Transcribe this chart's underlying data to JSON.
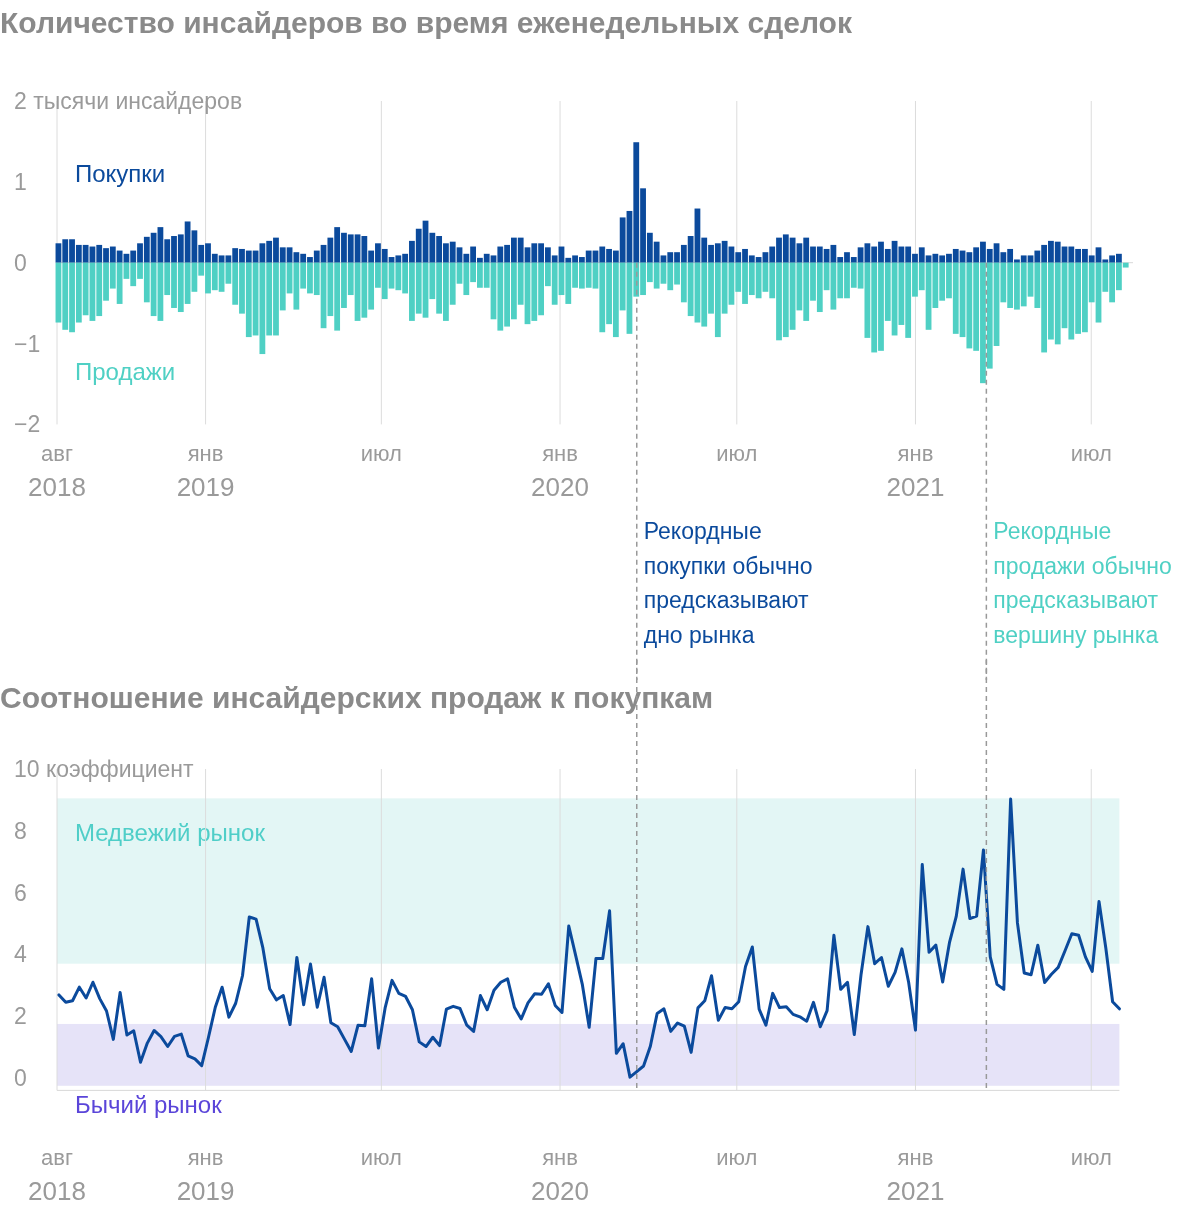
{
  "chart_data": [
    {
      "type": "bar",
      "title": "Количество инсайдеров во время еженедельных сделок",
      "stacked": true,
      "grid": "x",
      "x": [
        "2018-08-03",
        "2018-08-10",
        "2018-08-17",
        "2018-08-24",
        "2018-08-31",
        "2018-09-07",
        "2018-09-14",
        "2018-09-21",
        "2018-09-28",
        "2018-10-05",
        "2018-10-12",
        "2018-10-19",
        "2018-10-26",
        "2018-11-02",
        "2018-11-09",
        "2018-11-16",
        "2018-11-23",
        "2018-11-30",
        "2018-12-07",
        "2018-12-14",
        "2018-12-21",
        "2018-12-28",
        "2019-01-04",
        "2019-01-11",
        "2019-01-18",
        "2019-01-25",
        "2019-02-01",
        "2019-02-08",
        "2019-02-15",
        "2019-02-22",
        "2019-03-01",
        "2019-03-08",
        "2019-03-15",
        "2019-03-22",
        "2019-03-29",
        "2019-04-05",
        "2019-04-12",
        "2019-04-19",
        "2019-04-26",
        "2019-05-03",
        "2019-05-10",
        "2019-05-17",
        "2019-05-24",
        "2019-05-31",
        "2019-06-07",
        "2019-06-14",
        "2019-06-21",
        "2019-06-28",
        "2019-07-05",
        "2019-07-12",
        "2019-07-19",
        "2019-07-26",
        "2019-08-02",
        "2019-08-09",
        "2019-08-16",
        "2019-08-23",
        "2019-08-30",
        "2019-09-06",
        "2019-09-13",
        "2019-09-20",
        "2019-09-27",
        "2019-10-04",
        "2019-10-11",
        "2019-10-18",
        "2019-10-25",
        "2019-11-01",
        "2019-11-08",
        "2019-11-15",
        "2019-11-22",
        "2019-11-29",
        "2019-12-06",
        "2019-12-13",
        "2019-12-20",
        "2019-12-27",
        "2020-01-03",
        "2020-01-10",
        "2020-01-17",
        "2020-01-24",
        "2020-01-31",
        "2020-02-07",
        "2020-02-14",
        "2020-02-21",
        "2020-02-28",
        "2020-03-06",
        "2020-03-13",
        "2020-03-20",
        "2020-03-27",
        "2020-04-03",
        "2020-04-10",
        "2020-04-17",
        "2020-04-24",
        "2020-05-01",
        "2020-05-08",
        "2020-05-15",
        "2020-05-22",
        "2020-05-29",
        "2020-06-05",
        "2020-06-12",
        "2020-06-19",
        "2020-06-26",
        "2020-07-03",
        "2020-07-10",
        "2020-07-17",
        "2020-07-24",
        "2020-07-31",
        "2020-08-07",
        "2020-08-14",
        "2020-08-21",
        "2020-08-28",
        "2020-09-04",
        "2020-09-11",
        "2020-09-18",
        "2020-09-25",
        "2020-10-02",
        "2020-10-09",
        "2020-10-16",
        "2020-10-23",
        "2020-10-30",
        "2020-11-06",
        "2020-11-13",
        "2020-11-20",
        "2020-11-27",
        "2020-12-04",
        "2020-12-11",
        "2020-12-18",
        "2020-12-25",
        "2021-01-01",
        "2021-01-08",
        "2021-01-15",
        "2021-01-22",
        "2021-01-29",
        "2021-02-05",
        "2021-02-12",
        "2021-02-19",
        "2021-02-26",
        "2021-03-05",
        "2021-03-12",
        "2021-03-19",
        "2021-03-26",
        "2021-04-02",
        "2021-04-09",
        "2021-04-16",
        "2021-04-23",
        "2021-04-30",
        "2021-05-07",
        "2021-05-14",
        "2021-05-21",
        "2021-05-28",
        "2021-06-04",
        "2021-06-11",
        "2021-06-18",
        "2021-06-25",
        "2021-07-02",
        "2021-07-09",
        "2021-07-16",
        "2021-07-23",
        "2021-07-30",
        "2021-08-06"
      ],
      "series": [
        {
          "name": "Покупки",
          "color": "#0b4a9c",
          "values": [
            0.24,
            0.29,
            0.29,
            0.22,
            0.22,
            0.2,
            0.22,
            0.18,
            0.2,
            0.15,
            0.11,
            0.15,
            0.24,
            0.32,
            0.37,
            0.44,
            0.29,
            0.33,
            0.35,
            0.51,
            0.4,
            0.22,
            0.24,
            0.11,
            0.09,
            0.09,
            0.18,
            0.17,
            0.15,
            0.15,
            0.24,
            0.27,
            0.31,
            0.19,
            0.19,
            0.13,
            0.11,
            0.07,
            0.15,
            0.22,
            0.31,
            0.44,
            0.37,
            0.35,
            0.35,
            0.33,
            0.15,
            0.24,
            0.17,
            0.07,
            0.09,
            0.11,
            0.27,
            0.42,
            0.52,
            0.37,
            0.33,
            0.24,
            0.26,
            0.19,
            0.11,
            0.2,
            0.06,
            0.11,
            0.09,
            0.2,
            0.22,
            0.31,
            0.31,
            0.19,
            0.24,
            0.24,
            0.19,
            0.09,
            0.2,
            0.06,
            0.09,
            0.07,
            0.15,
            0.15,
            0.2,
            0.17,
            0.15,
            0.56,
            0.64,
            1.49,
            0.92,
            0.37,
            0.26,
            0.09,
            0.13,
            0.13,
            0.22,
            0.33,
            0.67,
            0.31,
            0.22,
            0.24,
            0.27,
            0.2,
            0.13,
            0.17,
            0.09,
            0.07,
            0.13,
            0.2,
            0.31,
            0.35,
            0.31,
            0.24,
            0.31,
            0.2,
            0.2,
            0.17,
            0.22,
            0.07,
            0.13,
            0.07,
            0.19,
            0.24,
            0.2,
            0.26,
            0.17,
            0.27,
            0.2,
            0.2,
            0.11,
            0.19,
            0.09,
            0.11,
            0.09,
            0.11,
            0.17,
            0.15,
            0.13,
            0.19,
            0.26,
            0.17,
            0.24,
            0.13,
            0.17,
            0.04,
            0.09,
            0.09,
            0.15,
            0.22,
            0.27,
            0.26,
            0.2,
            0.2,
            0.17,
            0.17,
            0.09,
            0.19,
            0.04,
            0.09,
            0.11,
            null
          ]
        },
        {
          "name": "Продажи",
          "color": "#4fd0c4",
          "values": [
            -0.74,
            -0.83,
            -0.86,
            -0.74,
            -0.65,
            -0.72,
            -0.66,
            -0.47,
            -0.32,
            -0.51,
            -0.2,
            -0.29,
            -0.2,
            -0.49,
            -0.66,
            -0.72,
            -0.4,
            -0.56,
            -0.61,
            -0.51,
            -0.36,
            -0.16,
            -0.38,
            -0.34,
            -0.36,
            -0.26,
            -0.52,
            -0.63,
            -0.92,
            -0.9,
            -1.13,
            -0.9,
            -0.9,
            -0.59,
            -0.38,
            -0.58,
            -0.32,
            -0.38,
            -0.4,
            -0.81,
            -0.66,
            -0.84,
            -0.56,
            -0.4,
            -0.72,
            -0.68,
            -0.58,
            -0.31,
            -0.45,
            -0.32,
            -0.34,
            -0.38,
            -0.72,
            -0.63,
            -0.68,
            -0.45,
            -0.63,
            -0.72,
            -0.52,
            -0.26,
            -0.4,
            -0.24,
            -0.31,
            -0.31,
            -0.7,
            -0.84,
            -0.79,
            -0.7,
            -0.52,
            -0.76,
            -0.72,
            -0.65,
            -0.29,
            -0.52,
            -0.4,
            -0.51,
            -0.31,
            -0.32,
            -0.31,
            -0.32,
            -0.86,
            -0.76,
            -0.92,
            -0.59,
            -0.88,
            -0.42,
            -0.4,
            -0.24,
            -0.32,
            -0.26,
            -0.34,
            -0.27,
            -0.49,
            -0.66,
            -0.74,
            -0.79,
            -0.63,
            -0.92,
            -0.63,
            -0.52,
            -0.36,
            -0.51,
            -0.4,
            -0.44,
            -0.36,
            -0.44,
            -0.96,
            -0.92,
            -0.83,
            -0.59,
            -0.72,
            -0.47,
            -0.61,
            -0.34,
            -0.58,
            -0.44,
            -0.44,
            -0.31,
            -0.32,
            -0.93,
            -1.11,
            -1.09,
            -0.72,
            -0.9,
            -0.77,
            -0.93,
            -0.42,
            -0.34,
            -0.83,
            -0.56,
            -0.47,
            -0.44,
            -0.88,
            -0.92,
            -1.06,
            -1.09,
            -1.49,
            -1.31,
            -1.03,
            -0.49,
            -0.56,
            -0.58,
            -0.54,
            -0.42,
            -0.56,
            -1.11,
            -0.95,
            -1.01,
            -0.81,
            -0.95,
            -0.88,
            -0.86,
            -0.49,
            -0.74,
            -0.36,
            -0.49,
            -0.34,
            -0.06
          ]
        }
      ],
      "xlim": [
        "2018-08-01",
        "2021-08-13"
      ],
      "xticks": [
        {
          "value": "2018-08-01",
          "label": "авг 2018"
        },
        {
          "value": "2019-01-01",
          "label": "янв 2019"
        },
        {
          "value": "2019-07-01",
          "label": "июл"
        },
        {
          "value": "2020-01-01",
          "label": "янв 2020"
        },
        {
          "value": "2020-07-01",
          "label": "июл"
        },
        {
          "value": "2021-01-01",
          "label": "янв 2021"
        },
        {
          "value": "2021-07-01",
          "label": "июл"
        }
      ],
      "ylim": [
        -2,
        2
      ],
      "yticks": [
        {
          "value": 2,
          "label": "2 тысячи инсайдеров"
        },
        1,
        0,
        {
          "value": -1,
          "label": "−1"
        },
        {
          "value": -2,
          "label": "−2"
        }
      ],
      "ref_lines": [
        {
          "axis": "x",
          "value": "2020-03-20",
          "label": "Рекордные покупки обычно предсказывают дно рынка"
        },
        {
          "axis": "x",
          "value": "2021-03-15",
          "label": "Рекордные продажи обычно предсказывают вершину рынка"
        }
      ]
    },
    {
      "type": "line",
      "title": "Соотношение инсайдерских продаж к покупкам",
      "grid": "x",
      "x": [
        "2018-08-03",
        "2018-08-10",
        "2018-08-17",
        "2018-08-24",
        "2018-08-31",
        "2018-09-07",
        "2018-09-14",
        "2018-09-21",
        "2018-09-28",
        "2018-10-05",
        "2018-10-12",
        "2018-10-19",
        "2018-10-26",
        "2018-11-02",
        "2018-11-09",
        "2018-11-16",
        "2018-11-23",
        "2018-11-30",
        "2018-12-07",
        "2018-12-14",
        "2018-12-21",
        "2018-12-28",
        "2019-01-04",
        "2019-01-11",
        "2019-01-18",
        "2019-01-25",
        "2019-02-01",
        "2019-02-08",
        "2019-02-15",
        "2019-02-22",
        "2019-03-01",
        "2019-03-08",
        "2019-03-15",
        "2019-03-22",
        "2019-03-29",
        "2019-04-05",
        "2019-04-12",
        "2019-04-19",
        "2019-04-26",
        "2019-05-03",
        "2019-05-10",
        "2019-05-17",
        "2019-05-24",
        "2019-05-31",
        "2019-06-07",
        "2019-06-14",
        "2019-06-21",
        "2019-06-28",
        "2019-07-05",
        "2019-07-12",
        "2019-07-19",
        "2019-07-26",
        "2019-08-02",
        "2019-08-09",
        "2019-08-16",
        "2019-08-23",
        "2019-08-30",
        "2019-09-06",
        "2019-09-13",
        "2019-09-20",
        "2019-09-27",
        "2019-10-04",
        "2019-10-11",
        "2019-10-18",
        "2019-10-25",
        "2019-11-01",
        "2019-11-08",
        "2019-11-15",
        "2019-11-22",
        "2019-11-29",
        "2019-12-06",
        "2019-12-13",
        "2019-12-20",
        "2019-12-27",
        "2020-01-03",
        "2020-01-10",
        "2020-01-17",
        "2020-01-24",
        "2020-01-31",
        "2020-02-07",
        "2020-02-14",
        "2020-02-21",
        "2020-02-28",
        "2020-03-06",
        "2020-03-13",
        "2020-03-20",
        "2020-03-27",
        "2020-04-03",
        "2020-04-10",
        "2020-04-17",
        "2020-04-24",
        "2020-05-01",
        "2020-05-08",
        "2020-05-15",
        "2020-05-22",
        "2020-05-29",
        "2020-06-05",
        "2020-06-12",
        "2020-06-19",
        "2020-06-26",
        "2020-07-03",
        "2020-07-10",
        "2020-07-17",
        "2020-07-24",
        "2020-07-31",
        "2020-08-07",
        "2020-08-14",
        "2020-08-21",
        "2020-08-28",
        "2020-09-04",
        "2020-09-11",
        "2020-09-18",
        "2020-09-25",
        "2020-10-02",
        "2020-10-09",
        "2020-10-16",
        "2020-10-23",
        "2020-10-30",
        "2020-11-06",
        "2020-11-13",
        "2020-11-20",
        "2020-11-27",
        "2020-12-04",
        "2020-12-11",
        "2020-12-18",
        "2020-12-25",
        "2021-01-01",
        "2021-01-08",
        "2021-01-15",
        "2021-01-22",
        "2021-01-29",
        "2021-02-05",
        "2021-02-12",
        "2021-02-19",
        "2021-02-26",
        "2021-03-05",
        "2021-03-12",
        "2021-03-19",
        "2021-03-26",
        "2021-04-02",
        "2021-04-09",
        "2021-04-16",
        "2021-04-23",
        "2021-04-30",
        "2021-05-07",
        "2021-05-14",
        "2021-05-21",
        "2021-05-28",
        "2021-06-04",
        "2021-06-11",
        "2021-06-18",
        "2021-06-25",
        "2021-07-02",
        "2021-07-09",
        "2021-07-16",
        "2021-07-23",
        "2021-07-30"
      ],
      "series": [
        {
          "color": "#0b4a9c",
          "values": [
            2.69,
            2.45,
            2.5,
            2.94,
            2.59,
            3.1,
            2.57,
            2.17,
            1.25,
            2.77,
            1.39,
            1.53,
            0.51,
            1.13,
            1.54,
            1.34,
            1.02,
            1.35,
            1.42,
            0.72,
            0.62,
            0.4,
            1.32,
            2.29,
            2.94,
            1.97,
            2.42,
            3.31,
            5.21,
            5.14,
            4.21,
            2.89,
            2.53,
            2.67,
            1.73,
            3.9,
            2.37,
            3.69,
            2.29,
            3.26,
            1.79,
            1.66,
            1.26,
            0.86,
            1.71,
            1.69,
            3.21,
            0.97,
            2.29,
            3.16,
            2.74,
            2.64,
            2.21,
            1.17,
            1.02,
            1.32,
            1.05,
            2.23,
            2.32,
            2.25,
            1.71,
            1.51,
            2.67,
            2.21,
            2.84,
            3.1,
            3.21,
            2.29,
            1.91,
            2.43,
            2.73,
            2.71,
            3.05,
            2.35,
            2.12,
            4.92,
            3.98,
            3.02,
            1.64,
            3.87,
            3.87,
            5.41,
            0.8,
            1.11,
            0.03,
            0.21,
            0.39,
            1.03,
            2.09,
            2.24,
            1.51,
            1.78,
            1.68,
            0.83,
            2.27,
            2.5,
            3.31,
            1.87,
            2.28,
            2.24,
            2.47,
            3.61,
            4.24,
            2.23,
            1.71,
            2.74,
            2.28,
            2.31,
            2.06,
            1.98,
            1.84,
            2.45,
            1.66,
            2.18,
            4.62,
            2.87,
            3.1,
            1.41,
            3.36,
            4.9,
            3.7,
            3.9,
            2.97,
            3.42,
            4.18,
            3.09,
            1.55,
            6.91,
            4.07,
            4.3,
            3.11,
            4.38,
            5.23,
            6.76,
            5.16,
            5.24,
            7.38,
            3.92,
            3.03,
            2.87,
            9.03,
            5.02,
            3.4,
            3.34,
            4.3,
            3.09,
            3.36,
            3.58,
            4.12,
            4.67,
            4.62,
            3.92,
            3.45,
            5.71,
            4.21,
            2.47,
            2.24
          ]
        }
      ],
      "xlim": [
        "2018-08-01",
        "2021-07-30"
      ],
      "xticks": [
        {
          "value": "2018-08-01",
          "label": "авг 2018"
        },
        {
          "value": "2019-01-01",
          "label": "янв 2019"
        },
        {
          "value": "2019-07-01",
          "label": "июл"
        },
        {
          "value": "2020-01-01",
          "label": "янв 2020"
        },
        {
          "value": "2020-07-01",
          "label": "июл"
        },
        {
          "value": "2021-01-01",
          "label": "янв 2021"
        },
        {
          "value": "2021-07-01",
          "label": "июл"
        }
      ],
      "ylim": [
        -0.4,
        10
      ],
      "yticks": [
        0,
        2,
        4,
        6,
        8,
        {
          "value": 10,
          "label": "10 коэффициент"
        }
      ],
      "bands": [
        {
          "axis": "y",
          "from": 3.7,
          "to": 9.05,
          "label": "Медвежий рынок",
          "color": "#e3f6f5"
        },
        {
          "axis": "y",
          "from": -0.25,
          "to": 1.75,
          "label": "Бычий рынок",
          "color": "#e6e3f8"
        }
      ],
      "ref_lines": [
        {
          "axis": "x",
          "value": "2020-03-20"
        },
        {
          "axis": "x",
          "value": "2021-03-15"
        }
      ]
    }
  ]
}
